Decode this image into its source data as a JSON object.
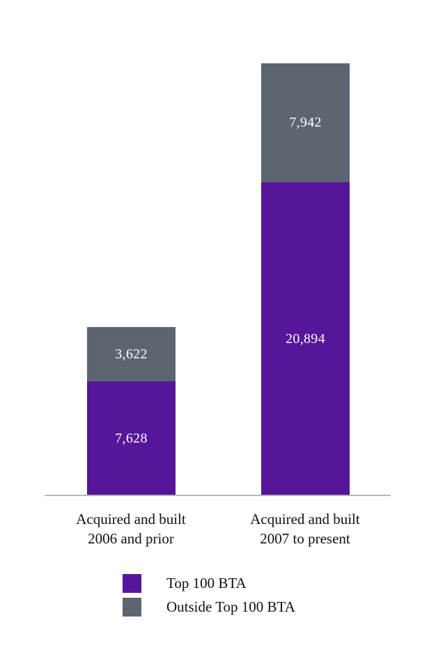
{
  "chart_data": {
    "type": "bar",
    "stacked": true,
    "grid": false,
    "legend_position": "bottom",
    "categories": [
      "Acquired and built\n2006 and prior",
      "Acquired and built\n2007 to present"
    ],
    "series": [
      {
        "name": "Top 100 BTA",
        "color": "#55169a",
        "values": [
          7628,
          20894
        ],
        "value_labels": [
          "7,628",
          "20,894"
        ]
      },
      {
        "name": "Outside Top 100 BTA",
        "color": "#5b6670",
        "values": [
          3622,
          7942
        ],
        "value_labels": [
          "3,622",
          "7,942"
        ]
      }
    ],
    "value_label_color": "#ffffff"
  }
}
